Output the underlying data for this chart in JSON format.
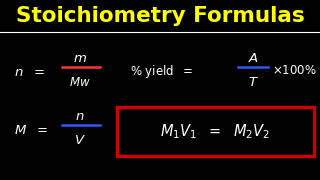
{
  "background_color": "#000000",
  "title": "Stoichiometry Formulas",
  "title_color": "#FFFF00",
  "title_fontsize": 15.5,
  "separator_color": "#FFFFFF",
  "formula_color": "#FFFFFF",
  "fraction_bar_color_red": "#FF3333",
  "fraction_bar_color_blue": "#3355FF",
  "box_color": "#CC0000",
  "fsize": 9.5,
  "fsize_small": 8.5
}
